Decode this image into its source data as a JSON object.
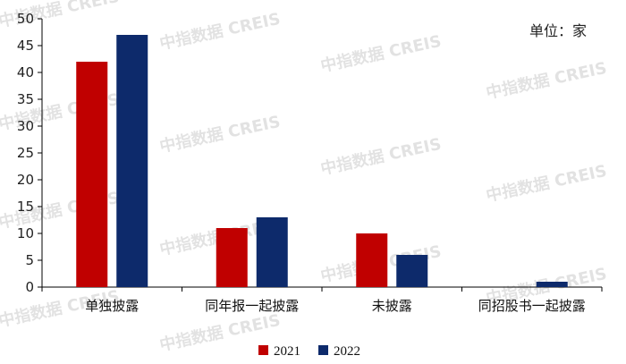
{
  "chart_data": {
    "type": "bar",
    "unit_text": "单位：家",
    "categories": [
      "单独披露",
      "同年报一起披露",
      "未披露",
      "同招股书一起披露"
    ],
    "series": [
      {
        "name": "2021",
        "color": "#c00000",
        "values": [
          42,
          11,
          10,
          0
        ]
      },
      {
        "name": "2022",
        "color": "#0d2a6b",
        "values": [
          47,
          13,
          6,
          1
        ]
      }
    ],
    "ylim": [
      0,
      50
    ],
    "yticks": [
      0,
      5,
      10,
      15,
      20,
      25,
      30,
      35,
      40,
      45,
      50
    ],
    "grid": false,
    "legend_position": "bottom-center",
    "watermark_text": "中指数据 CREIS"
  }
}
